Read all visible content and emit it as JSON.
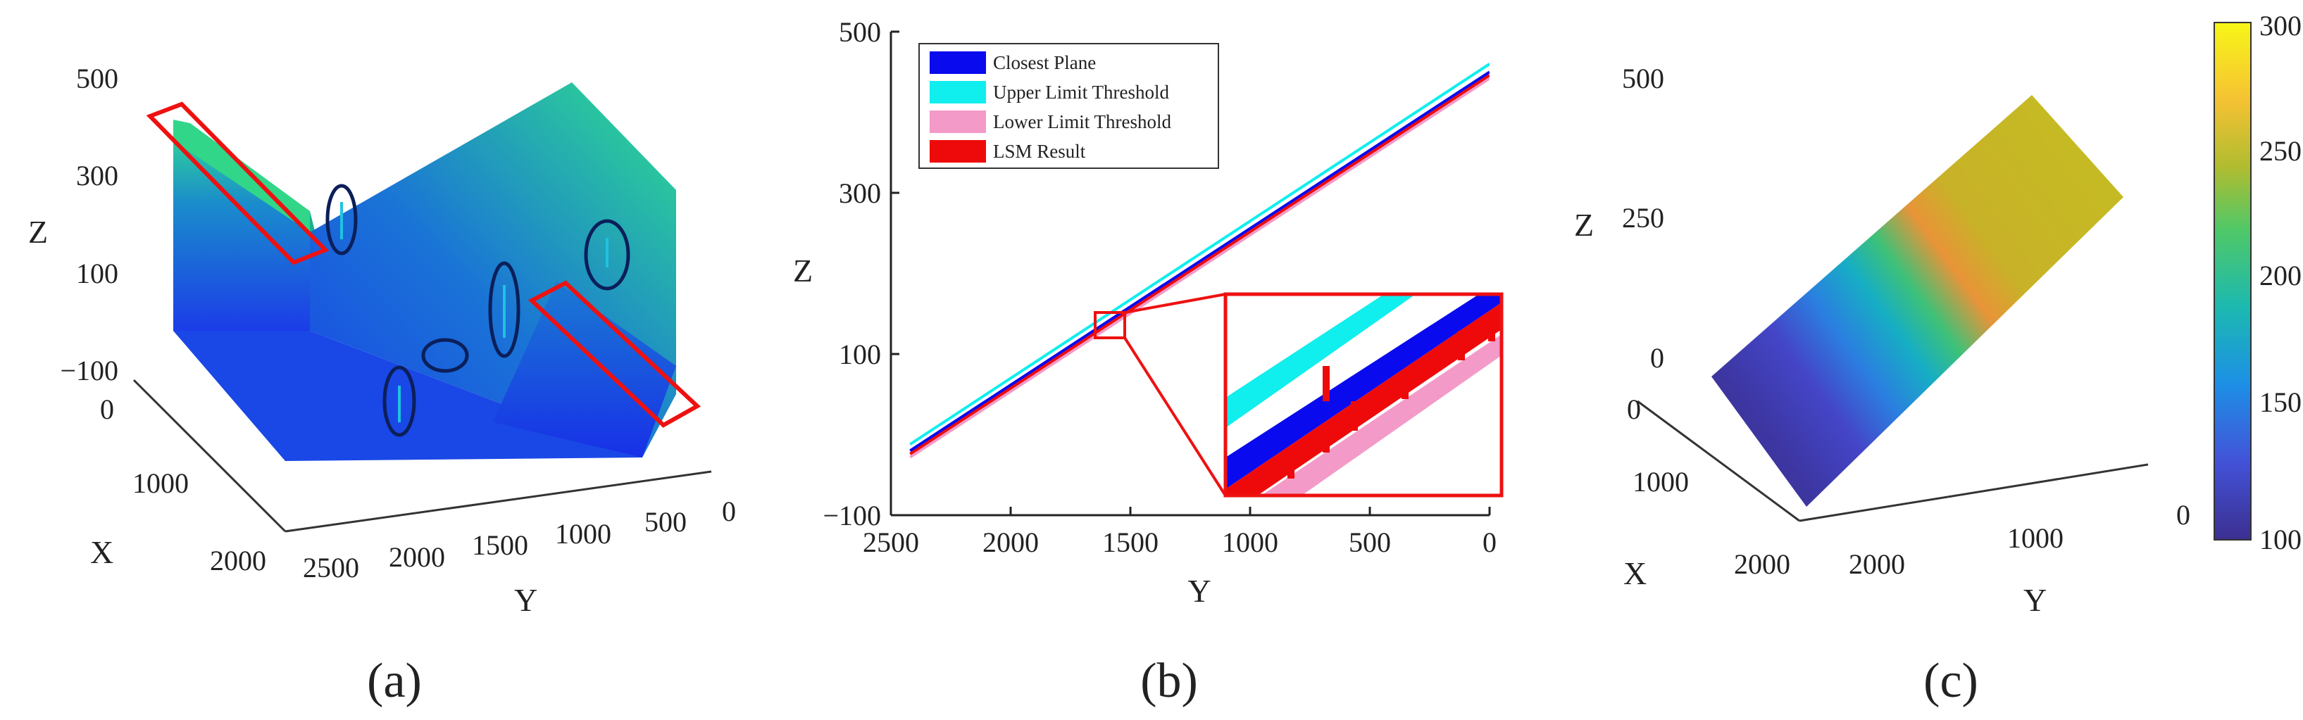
{
  "chart_data": [
    {
      "id": "a",
      "type": "3d-surface",
      "caption": "(a)",
      "xlabel": "X",
      "ylabel": "Y",
      "zlabel": "Z",
      "x_ticks": [
        "0",
        "1000",
        "2000"
      ],
      "y_ticks": [
        "2500",
        "2000",
        "1500",
        "1000",
        "500",
        "0"
      ],
      "z_ticks": [
        "500",
        "300",
        "100",
        "−100"
      ],
      "colormap": [
        "#1c3ce8",
        "#1a78d2",
        "#22d08a",
        "#34e58e"
      ],
      "annotations": {
        "highlight_boxes": 2,
        "highlight_color": "#ee1111",
        "outlier_ellipses": 5,
        "ellipse_color": "#0b1f5a"
      }
    },
    {
      "id": "b",
      "type": "line",
      "caption": "(b)",
      "xlabel": "Y",
      "ylabel": "Z",
      "xlim": [
        2500,
        0
      ],
      "ylim": [
        -100,
        500
      ],
      "x_ticks": [
        "2500",
        "2000",
        "1500",
        "1000",
        "500",
        "0"
      ],
      "y_ticks": [
        "500",
        "300",
        "100",
        "−100"
      ],
      "series": [
        {
          "name": "Closest Plane",
          "color": "#0a0aee",
          "x": [
            2420,
            0
          ],
          "y": [
            -20,
            450
          ]
        },
        {
          "name": "Upper Limit Threshold",
          "color": "#11eeee",
          "x": [
            2420,
            0
          ],
          "y": [
            -12,
            460
          ]
        },
        {
          "name": "Lower Limit Threshold",
          "color": "#f39ac8",
          "x": [
            2420,
            0
          ],
          "y": [
            -28,
            442
          ]
        },
        {
          "name": "LSM Result",
          "color": "#ee0a0a",
          "x": [
            2420,
            0
          ],
          "y": [
            -24,
            446
          ]
        }
      ],
      "inset": {
        "region_y": [
          1570,
          1700
        ],
        "region_z": [
          120,
          140
        ],
        "color": "#ee1111"
      }
    },
    {
      "id": "c",
      "type": "3d-surface",
      "caption": "(c)",
      "xlabel": "X",
      "ylabel": "Y",
      "zlabel": "Z",
      "x_ticks": [
        "0",
        "1000",
        "2000"
      ],
      "y_ticks": [
        "2000",
        "1000",
        "0"
      ],
      "z_ticks": [
        "500",
        "250",
        "0"
      ],
      "colorbar": {
        "ticks": [
          "300",
          "250",
          "200",
          "150",
          "100"
        ],
        "range": [
          100,
          300
        ],
        "colors": [
          "#3b2f90",
          "#4352d8",
          "#1d8fe6",
          "#1cb9b0",
          "#50c867",
          "#b0bc30",
          "#f5c233",
          "#f7f618"
        ]
      }
    }
  ]
}
